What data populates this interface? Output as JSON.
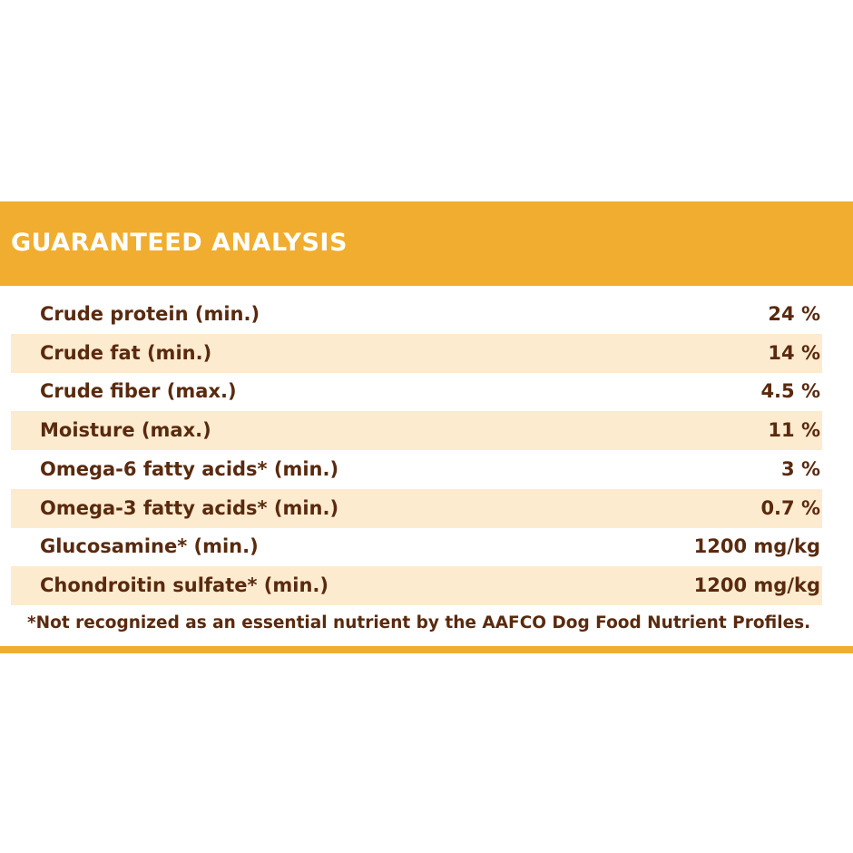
{
  "header": {
    "title": "GUARANTEED ANALYSIS"
  },
  "table": {
    "rows": [
      [
        "Crude protein (min.)",
        "24 %"
      ],
      [
        "Crude fat (min.)",
        "14 %"
      ],
      [
        "Crude fiber (max.)",
        "4.5 %"
      ],
      [
        "Moisture (max.)",
        "11 %"
      ],
      [
        "Omega-6 fatty acids* (min.)",
        "3 %"
      ],
      [
        "Omega-3 fatty acids* (min.)",
        "0.7 %"
      ],
      [
        "Glucosamine* (min.)",
        "1200 mg/kg"
      ],
      [
        "Chondroitin sulfate* (min.)",
        "1200 mg/kg"
      ]
    ]
  },
  "footnote": "*Not recognized as an essential nutrient by the AAFCO Dog Food Nutrient Profiles."
}
